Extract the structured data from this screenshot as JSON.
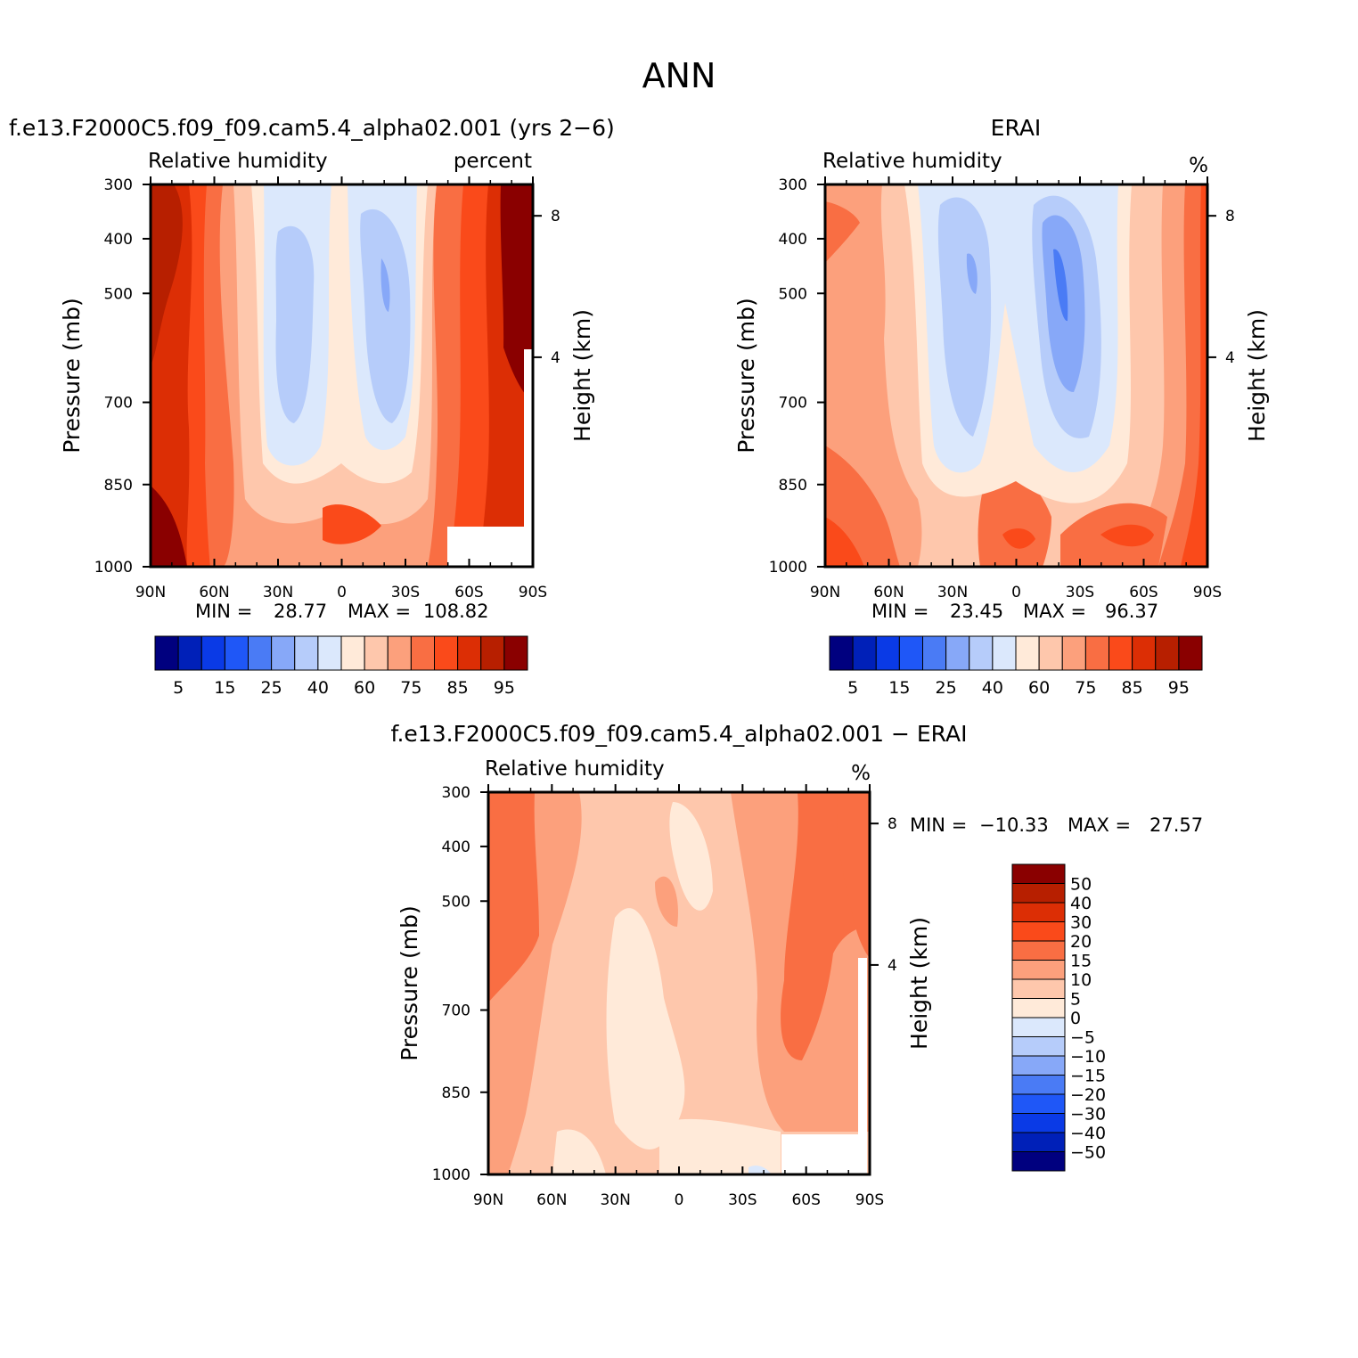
{
  "figure": {
    "title": "ANN"
  },
  "chart_data": [
    {
      "type": "heatmap",
      "panel": "model",
      "case_title": "f.e13.F2000C5.f09_f09.cam5.4_alpha02.001 (yrs 2−6)",
      "variable": "Relative humidity",
      "units": "percent",
      "ylabel": "Pressure (mb)",
      "ylabel_right": "Height (km)",
      "x_ticks": [
        "90N",
        "60N",
        "30N",
        "0",
        "30S",
        "60S",
        "90S"
      ],
      "y_ticks": [
        "300",
        "400",
        "500",
        "700",
        "850",
        "1000"
      ],
      "y_right_ticks": [
        "8",
        "4"
      ],
      "min_label": "MIN =",
      "min_value": "28.77",
      "max_label": "MAX =",
      "max_value": "108.82",
      "colorbar_labels": [
        "5",
        "15",
        "25",
        "40",
        "60",
        "75",
        "85",
        "95"
      ]
    },
    {
      "type": "heatmap",
      "panel": "obs",
      "case_title": "ERAI",
      "variable": "Relative humidity",
      "units": "%",
      "ylabel": "Pressure (mb)",
      "ylabel_right": "Height (km)",
      "x_ticks": [
        "90N",
        "60N",
        "30N",
        "0",
        "30S",
        "60S",
        "90S"
      ],
      "y_ticks": [
        "300",
        "400",
        "500",
        "700",
        "850",
        "1000"
      ],
      "y_right_ticks": [
        "8",
        "4"
      ],
      "min_label": "MIN =",
      "min_value": "23.45",
      "max_label": "MAX =",
      "max_value": "96.37",
      "colorbar_labels": [
        "5",
        "15",
        "25",
        "40",
        "60",
        "75",
        "85",
        "95"
      ]
    },
    {
      "type": "heatmap",
      "panel": "diff",
      "case_title": "f.e13.F2000C5.f09_f09.cam5.4_alpha02.001 − ERAI",
      "variable": "Relative humidity",
      "units": "%",
      "ylabel": "Pressure (mb)",
      "ylabel_right": "Height (km)",
      "x_ticks": [
        "90N",
        "60N",
        "30N",
        "0",
        "30S",
        "60S",
        "90S"
      ],
      "y_ticks": [
        "300",
        "400",
        "500",
        "700",
        "850",
        "1000"
      ],
      "y_right_ticks": [
        "8",
        "4"
      ],
      "min_label": "MIN =",
      "min_value": "−10.33",
      "max_label": "MAX =",
      "max_value": "27.57",
      "colorbar_labels": [
        "50",
        "40",
        "30",
        "20",
        "15",
        "10",
        "5",
        "0",
        "−5",
        "−10",
        "−15",
        "−20",
        "−30",
        "−40",
        "−50"
      ]
    }
  ],
  "colors": {
    "abs_scale": [
      "#00007f",
      "#0020b8",
      "#0a3ae6",
      "#1f57f7",
      "#4a7bf5",
      "#87a8f8",
      "#b6ccfa",
      "#dbe8fc",
      "#ffead9",
      "#fec7ac",
      "#fca07c",
      "#f96e43",
      "#fa4a1a",
      "#dc2e05",
      "#b71f00",
      "#8a0000"
    ],
    "diff_scale": [
      "#8a0000",
      "#b71f00",
      "#dc2e05",
      "#fa4a1a",
      "#f96e43",
      "#fca07c",
      "#fec7ac",
      "#ffead9",
      "#dbe8fc",
      "#b6ccfa",
      "#87a8f8",
      "#4a7bf5",
      "#1f57f7",
      "#0a3ae6",
      "#0020b8",
      "#00007f"
    ]
  }
}
